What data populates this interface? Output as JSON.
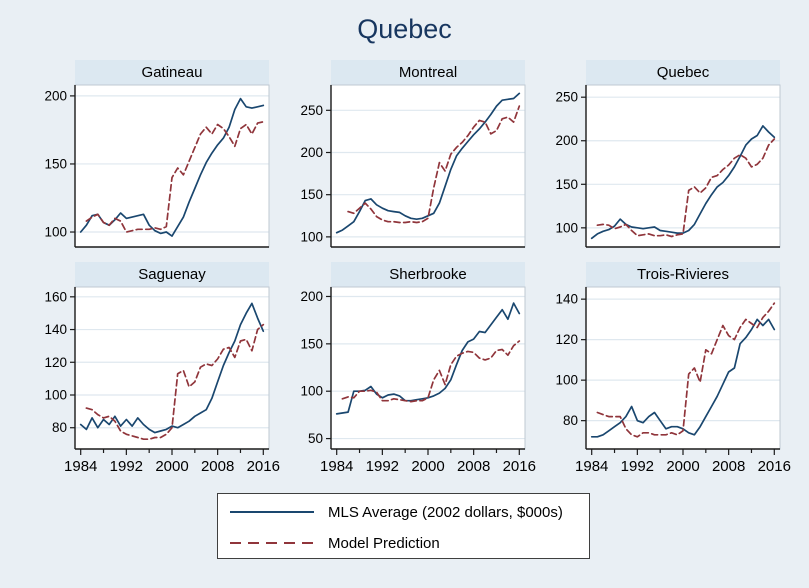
{
  "page": {
    "title": "Quebec"
  },
  "colors": {
    "background": "#e9eff4",
    "panel_header": "#dce8f1",
    "plot_background": "#ffffff",
    "gridline": "#dfe8ef",
    "frame": "#bfc9d2",
    "axis": "#1a1a1a",
    "text": "#000000",
    "title_text": "#17365f",
    "mls_line": "#1a476f",
    "prediction_line": "#90353b"
  },
  "legend": {
    "items": [
      {
        "key": "mls",
        "style": "solid",
        "label": "MLS Average (2002 dollars, $000s)"
      },
      {
        "key": "prediction",
        "style": "dashed",
        "label": "Model Prediction"
      }
    ]
  },
  "chart_data": {
    "type": "line",
    "title": "Quebec",
    "ylabel": "",
    "xlabel": "",
    "grid": "horizontal",
    "legend_position": "bottom",
    "x_years": [
      1984,
      1985,
      1986,
      1987,
      1988,
      1989,
      1990,
      1991,
      1992,
      1993,
      1994,
      1995,
      1996,
      1997,
      1998,
      1999,
      2000,
      2001,
      2002,
      2003,
      2004,
      2005,
      2006,
      2007,
      2008,
      2009,
      2010,
      2011,
      2012,
      2013,
      2014,
      2015,
      2016
    ],
    "xlim": [
      1983,
      2017
    ],
    "x_ticks_labeled": [
      1984,
      1992,
      2000,
      2008,
      2016
    ],
    "x_ticks_minor": [
      1988,
      1996,
      2004,
      2012
    ],
    "panels": [
      {
        "title": "Gatineau",
        "ylim": [
          89,
          208
        ],
        "yticks": [
          100,
          150,
          200
        ],
        "series": [
          {
            "key": "mls",
            "name": "MLS Average (2002 dollars, $000s)",
            "values": [
              100,
              105,
              112,
              113,
              107,
              105,
              109,
              114,
              110,
              111,
              112,
              113,
              105,
              101,
              99,
              100,
              97,
              104,
              111,
              122,
              132,
              142,
              151,
              158,
              164,
              169,
              177,
              190,
              198,
              192,
              191,
              192,
              193
            ]
          },
          {
            "key": "prediction",
            "name": "Model Prediction",
            "values": [
              null,
              108,
              111,
              113,
              107,
              105,
              110,
              108,
              100,
              101,
              102,
              102,
              102,
              103,
              102,
              104,
              140,
              147,
              142,
              152,
              162,
              172,
              177,
              172,
              179,
              176,
              170,
              163,
              176,
              179,
              172,
              180,
              181
            ]
          }
        ]
      },
      {
        "title": "Montreal",
        "ylim": [
          88,
          280
        ],
        "yticks": [
          100,
          150,
          200,
          250
        ],
        "series": [
          {
            "key": "mls",
            "name": "MLS Average (2002 dollars, $000s)",
            "values": [
              105,
              108,
              113,
              118,
              130,
              143,
              145,
              138,
              134,
              131,
              130,
              129,
              125,
              122,
              121,
              122,
              125,
              128,
              140,
              160,
              180,
              196,
              205,
              213,
              221,
              228,
              236,
              245,
              255,
              262,
              263,
              264,
              270
            ]
          },
          {
            "key": "prediction",
            "name": "Model Prediction",
            "values": [
              null,
              null,
              130,
              128,
              134,
              140,
              133,
              124,
              120,
              118,
              118,
              117,
              117,
              118,
              117,
              118,
              122,
              158,
              188,
              178,
              198,
              206,
              212,
              220,
              230,
              238,
              236,
              222,
              226,
              240,
              242,
              236,
              255
            ]
          }
        ]
      },
      {
        "title": "Quebec",
        "ylim": [
          78,
          264
        ],
        "yticks": [
          100,
          150,
          200,
          250
        ],
        "series": [
          {
            "key": "mls",
            "name": "MLS Average (2002 dollars, $000s)",
            "values": [
              88,
              93,
              96,
              98,
              102,
              110,
              104,
              101,
              100,
              99,
              100,
              101,
              97,
              96,
              95,
              94,
              94,
              97,
              104,
              116,
              128,
              138,
              147,
              152,
              160,
              170,
              182,
              195,
              202,
              206,
              217,
              210,
              204
            ]
          },
          {
            "key": "prediction",
            "name": "Model Prediction",
            "values": [
              null,
              103,
              104,
              103,
              99,
              101,
              104,
              97,
              91,
              92,
              93,
              91,
              91,
              92,
              90,
              92,
              93,
              143,
              147,
              140,
              146,
              158,
              160,
              167,
              172,
              180,
              184,
              180,
              170,
              173,
              180,
              195,
              202
            ]
          }
        ]
      },
      {
        "title": "Saguenay",
        "ylim": [
          67,
          166
        ],
        "yticks": [
          80,
          100,
          120,
          140,
          160
        ],
        "series": [
          {
            "key": "mls",
            "name": "MLS Average (2002 dollars, $000s)",
            "values": [
              82,
              79,
              86,
              80,
              85,
              82,
              87,
              81,
              85,
              81,
              86,
              82,
              79,
              77,
              78,
              79,
              81,
              80,
              82,
              84,
              87,
              89,
              91,
              98,
              108,
              118,
              126,
              133,
              143,
              150,
              156,
              147,
              139
            ]
          },
          {
            "key": "prediction",
            "name": "Model Prediction",
            "values": [
              null,
              92,
              91,
              88,
              86,
              87,
              84,
              78,
              76,
              75,
              74,
              73,
              73,
              74,
              74,
              76,
              80,
              113,
              115,
              105,
              108,
              117,
              119,
              118,
              122,
              128,
              129,
              123,
              133,
              134,
              127,
              140,
              143
            ]
          }
        ]
      },
      {
        "title": "Sherbrooke",
        "ylim": [
          39,
          210
        ],
        "yticks": [
          50,
          100,
          150,
          200
        ],
        "series": [
          {
            "key": "mls",
            "name": "MLS Average (2002 dollars, $000s)",
            "values": [
              76,
              77,
              78,
              100,
              100,
              101,
              105,
              97,
              93,
              96,
              97,
              95,
              90,
              90,
              91,
              92,
              93,
              95,
              98,
              103,
              112,
              128,
              143,
              152,
              155,
              163,
              162,
              170,
              178,
              186,
              176,
              193,
              182
            ]
          },
          {
            "key": "prediction",
            "name": "Model Prediction",
            "values": [
              null,
              92,
              94,
              93,
              100,
              100,
              101,
              99,
              90,
              90,
              92,
              91,
              90,
              89,
              90,
              90,
              93,
              112,
              122,
              107,
              128,
              137,
              140,
              142,
              141,
              135,
              133,
              135,
              143,
              144,
              138,
              148,
              153
            ]
          }
        ]
      },
      {
        "title": "Trois-Rivieres",
        "ylim": [
          66,
          146
        ],
        "yticks": [
          80,
          100,
          120,
          140
        ],
        "series": [
          {
            "key": "mls",
            "name": "MLS Average (2002 dollars, $000s)",
            "values": [
              72,
              72,
              73,
              75,
              77,
              79,
              82,
              87,
              80,
              79,
              82,
              84,
              80,
              76,
              77,
              77,
              76,
              74,
              73,
              77,
              82,
              87,
              92,
              98,
              104,
              106,
              118,
              121,
              125,
              130,
              127,
              130,
              125
            ]
          },
          {
            "key": "prediction",
            "name": "Model Prediction",
            "values": [
              null,
              84,
              83,
              82,
              82,
              82,
              76,
              73,
              72,
              74,
              74,
              73,
              73,
              73,
              74,
              73,
              75,
              103,
              106,
              99,
              115,
              113,
              120,
              127,
              122,
              120,
              126,
              130,
              128,
              126,
              131,
              134,
              138
            ]
          }
        ]
      }
    ]
  }
}
